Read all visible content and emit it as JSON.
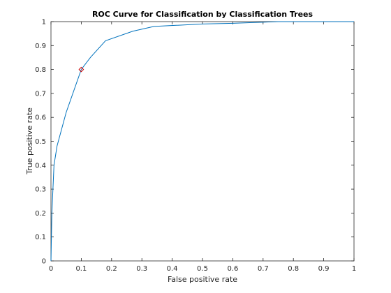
{
  "chart_data": {
    "type": "line",
    "title": "ROC Curve for Classification by Classification Trees",
    "xlabel": "False positive rate",
    "ylabel": "True positive rate",
    "xlim": [
      0,
      1
    ],
    "ylim": [
      0,
      1
    ],
    "x_ticks": [
      "0",
      "0.1",
      "0.2",
      "0.3",
      "0.4",
      "0.5",
      "0.6",
      "0.7",
      "0.8",
      "0.9",
      "1"
    ],
    "y_ticks": [
      "0",
      "0.1",
      "0.2",
      "0.3",
      "0.4",
      "0.5",
      "0.6",
      "0.7",
      "0.8",
      "0.9",
      "1"
    ],
    "grid": false,
    "legend": "none",
    "series": [
      {
        "color": "#0072bd",
        "x": [
          0,
          0.003,
          0.01,
          0.02,
          0.05,
          0.1,
          0.13,
          0.18,
          0.27,
          0.34,
          0.5,
          0.6,
          0.75,
          1.0
        ],
        "y": [
          0,
          0.2,
          0.4,
          0.48,
          0.62,
          0.8,
          0.85,
          0.92,
          0.96,
          0.98,
          0.99,
          0.993,
          1.0,
          1.0
        ]
      }
    ],
    "marker_point": {
      "x": 0.1,
      "y": 0.8,
      "color": "#cc0000",
      "shape": "diamond"
    }
  }
}
